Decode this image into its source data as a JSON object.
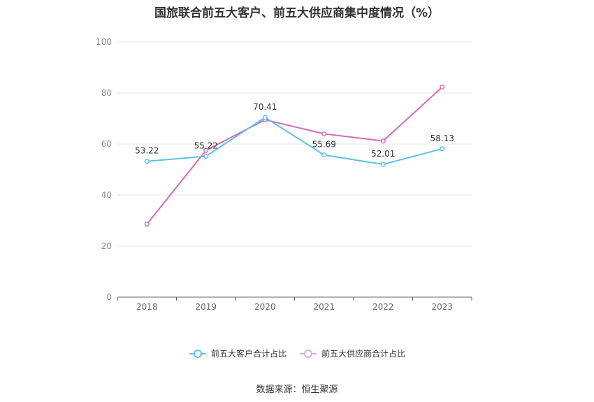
{
  "chart_data": {
    "type": "line",
    "title": "国旅联合前五大客户、前五大供应商集中度情况（%）",
    "categories": [
      "2018",
      "2019",
      "2020",
      "2021",
      "2022",
      "2023"
    ],
    "y_ticks": [
      "0",
      "20",
      "40",
      "60",
      "80",
      "100"
    ],
    "ylim": [
      0,
      100
    ],
    "grid": true,
    "legend_position": "bottom",
    "series": [
      {
        "name": "前五大客户合计占比",
        "color": "#5bc0eb",
        "values": [
          53.22,
          55.22,
          70.41,
          55.69,
          52.01,
          58.13
        ],
        "labels": [
          "53.22",
          "55.22",
          "70.41",
          "55.69",
          "52.01",
          "58.13"
        ]
      },
      {
        "name": "前五大供应商合计占比",
        "color": "#d36bb4",
        "values": [
          28.6,
          57.5,
          69.5,
          64.0,
          61.2,
          82.3
        ]
      }
    ]
  },
  "source": "数据来源：恒生聚源"
}
